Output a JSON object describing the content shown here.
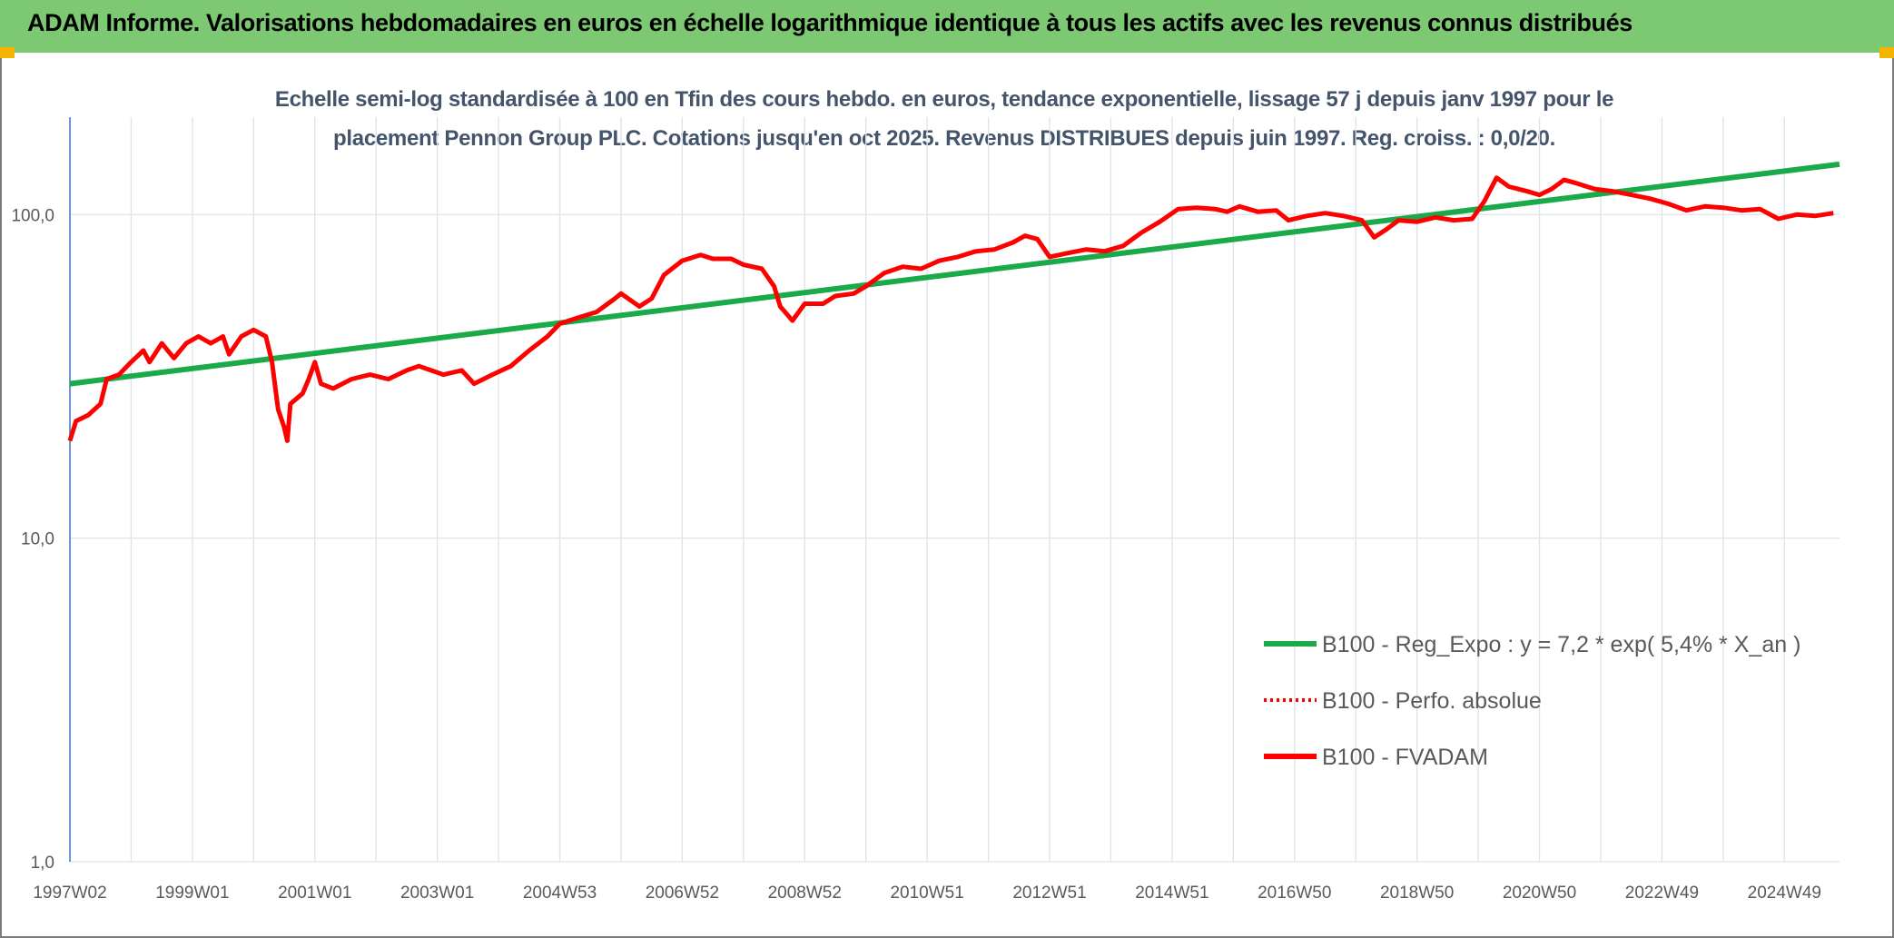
{
  "chart_data": {
    "type": "line",
    "title": "ADAM Informe. Valorisations hebdomadaires en euros en échelle logarithmique identique à tous les actifs avec les revenus connus distribués",
    "subtitle": "Echelle semi-log standardisée à 100 en Tfin des cours hebdo. en euros, tendance exponentielle, lissage 57 j depuis janv 1997 pour le placement Pennon Group PLC. Cotations jusqu'en oct 2025. Revenus DISTRIBUES depuis juin 1997. Reg. croiss. : 0,0/20.",
    "log_y": true,
    "grid": true,
    "xlim": [
      1997.0,
      2025.9
    ],
    "xticks": [
      {
        "value": 1997.0,
        "label": "1997W02"
      },
      {
        "value": 1999.0,
        "label": "1999W01"
      },
      {
        "value": 2001.0,
        "label": "2001W01"
      },
      {
        "value": 2003.0,
        "label": "2003W01"
      },
      {
        "value": 2005.0,
        "label": "2004W53"
      },
      {
        "value": 2007.0,
        "label": "2006W52"
      },
      {
        "value": 2009.0,
        "label": "2008W52"
      },
      {
        "value": 2011.0,
        "label": "2010W51"
      },
      {
        "value": 2013.0,
        "label": "2012W51"
      },
      {
        "value": 2015.0,
        "label": "2014W51"
      },
      {
        "value": 2017.0,
        "label": "2016W50"
      },
      {
        "value": 2019.0,
        "label": "2018W50"
      },
      {
        "value": 2021.0,
        "label": "2020W50"
      },
      {
        "value": 2023.0,
        "label": "2022W49"
      },
      {
        "value": 2025.0,
        "label": "2024W49"
      }
    ],
    "x_minor_grid": [
      1998,
      2000,
      2002,
      2004,
      2006,
      2008,
      2010,
      2012,
      2014,
      2016,
      2018,
      2020,
      2022,
      2024
    ],
    "ylim": [
      1,
      200
    ],
    "yticks": [
      {
        "value": 1,
        "label": "1,0"
      },
      {
        "value": 10,
        "label": "10,0"
      },
      {
        "value": 100,
        "label": "100,0"
      }
    ],
    "series": [
      {
        "name": "B100 - Reg_Expo : y = 7,2 * exp( 5,4% *  X_an )",
        "color": "#1aaa4a",
        "style": "solid",
        "x": [
          1997.0,
          2025.9
        ],
        "values": [
          30,
          143
        ]
      },
      {
        "name": "B100 - Perfo. absolue",
        "color": "#ff0000",
        "style": "dotted",
        "x": [
          1997.0,
          1997.1,
          1997.3,
          1997.5,
          1997.6,
          1997.8,
          1998.0,
          1998.2,
          1998.3,
          1998.5,
          1998.7,
          1998.9,
          1999.1,
          1999.3,
          1999.5,
          1999.6,
          1999.8,
          2000.0,
          2000.2,
          2000.3,
          2000.4,
          2000.5,
          2000.55,
          2000.6,
          2000.8,
          2000.9,
          2001.0,
          2001.1,
          2001.3,
          2001.6,
          2001.9,
          2002.2,
          2002.5,
          2002.7,
          2002.9,
          2003.1,
          2003.4,
          2003.6,
          2003.9,
          2004.2,
          2004.5,
          2004.8,
          2005.0,
          2005.3,
          2005.6,
          2005.9,
          2006.0,
          2006.3,
          2006.5,
          2006.7,
          2007.0,
          2007.3,
          2007.5,
          2007.8,
          2008.0,
          2008.3,
          2008.5,
          2008.6,
          2008.8,
          2009.0,
          2009.3,
          2009.5,
          2009.8,
          2010.0,
          2010.3,
          2010.6,
          2010.9,
          2011.2,
          2011.5,
          2011.8,
          2012.1,
          2012.4,
          2012.6,
          2012.8,
          2013.0,
          2013.3,
          2013.6,
          2013.9,
          2014.2,
          2014.5,
          2014.8,
          2015.1,
          2015.4,
          2015.7,
          2015.9,
          2016.1,
          2016.4,
          2016.7,
          2016.9,
          2017.2,
          2017.5,
          2017.8,
          2018.1,
          2018.3,
          2018.5,
          2018.7,
          2019.0,
          2019.3,
          2019.6,
          2019.9,
          2020.1,
          2020.3,
          2020.5,
          2020.8,
          2021.0,
          2021.2,
          2021.4,
          2021.6,
          2021.9,
          2022.2,
          2022.5,
          2022.8,
          2023.1,
          2023.4,
          2023.7,
          2024.0,
          2024.3,
          2024.6,
          2024.9,
          2025.2,
          2025.5,
          2025.8
        ],
        "values": [
          20,
          23,
          24,
          26,
          31,
          32,
          35,
          38,
          35,
          40,
          36,
          40,
          42,
          40,
          42,
          37,
          42,
          44,
          42,
          35,
          25,
          22,
          20,
          26,
          28,
          31,
          35,
          30,
          29,
          31,
          32,
          31,
          33,
          34,
          33,
          32,
          33,
          30,
          32,
          34,
          38,
          42,
          46,
          48,
          50,
          55,
          57,
          52,
          55,
          65,
          72,
          75,
          73,
          73,
          70,
          68,
          60,
          52,
          47,
          53,
          53,
          56,
          57,
          60,
          66,
          69,
          68,
          72,
          74,
          77,
          78,
          82,
          86,
          84,
          74,
          76,
          78,
          77,
          80,
          88,
          95,
          104,
          105,
          104,
          102,
          106,
          102,
          103,
          96,
          99,
          101,
          99,
          96,
          85,
          90,
          96,
          95,
          98,
          96,
          97,
          110,
          130,
          122,
          118,
          115,
          120,
          128,
          125,
          120,
          118,
          115,
          112,
          108,
          103,
          106,
          105,
          103,
          104,
          97,
          100,
          99,
          101
        ]
      },
      {
        "name": "B100 - FVADAM",
        "color": "#ff0000",
        "style": "solid",
        "x": [
          1997.0,
          1997.1,
          1997.3,
          1997.5,
          1997.6,
          1997.8,
          1998.0,
          1998.2,
          1998.3,
          1998.5,
          1998.7,
          1998.9,
          1999.1,
          1999.3,
          1999.5,
          1999.6,
          1999.8,
          2000.0,
          2000.2,
          2000.3,
          2000.4,
          2000.5,
          2000.55,
          2000.6,
          2000.8,
          2000.9,
          2001.0,
          2001.1,
          2001.3,
          2001.6,
          2001.9,
          2002.2,
          2002.5,
          2002.7,
          2002.9,
          2003.1,
          2003.4,
          2003.6,
          2003.9,
          2004.2,
          2004.5,
          2004.8,
          2005.0,
          2005.3,
          2005.6,
          2005.9,
          2006.0,
          2006.3,
          2006.5,
          2006.7,
          2007.0,
          2007.3,
          2007.5,
          2007.8,
          2008.0,
          2008.3,
          2008.5,
          2008.6,
          2008.8,
          2009.0,
          2009.3,
          2009.5,
          2009.8,
          2010.0,
          2010.3,
          2010.6,
          2010.9,
          2011.2,
          2011.5,
          2011.8,
          2012.1,
          2012.4,
          2012.6,
          2012.8,
          2013.0,
          2013.3,
          2013.6,
          2013.9,
          2014.2,
          2014.5,
          2014.8,
          2015.1,
          2015.4,
          2015.7,
          2015.9,
          2016.1,
          2016.4,
          2016.7,
          2016.9,
          2017.2,
          2017.5,
          2017.8,
          2018.1,
          2018.3,
          2018.5,
          2018.7,
          2019.0,
          2019.3,
          2019.6,
          2019.9,
          2020.1,
          2020.3,
          2020.5,
          2020.8,
          2021.0,
          2021.2,
          2021.4,
          2021.6,
          2021.9,
          2022.2,
          2022.5,
          2022.8,
          2023.1,
          2023.4,
          2023.7,
          2024.0,
          2024.3,
          2024.6,
          2024.9,
          2025.2,
          2025.5,
          2025.8
        ],
        "values": [
          20,
          23,
          24,
          26,
          31,
          32,
          35,
          38,
          35,
          40,
          36,
          40,
          42,
          40,
          42,
          37,
          42,
          44,
          42,
          35,
          25,
          22,
          20,
          26,
          28,
          31,
          35,
          30,
          29,
          31,
          32,
          31,
          33,
          34,
          33,
          32,
          33,
          30,
          32,
          34,
          38,
          42,
          46,
          48,
          50,
          55,
          57,
          52,
          55,
          65,
          72,
          75,
          73,
          73,
          70,
          68,
          60,
          52,
          47,
          53,
          53,
          56,
          57,
          60,
          66,
          69,
          68,
          72,
          74,
          77,
          78,
          82,
          86,
          84,
          74,
          76,
          78,
          77,
          80,
          88,
          95,
          104,
          105,
          104,
          102,
          106,
          102,
          103,
          96,
          99,
          101,
          99,
          96,
          85,
          90,
          96,
          95,
          98,
          96,
          97,
          110,
          130,
          122,
          118,
          115,
          120,
          128,
          125,
          120,
          118,
          115,
          112,
          108,
          103,
          106,
          105,
          103,
          104,
          97,
          100,
          99,
          101
        ]
      }
    ]
  }
}
